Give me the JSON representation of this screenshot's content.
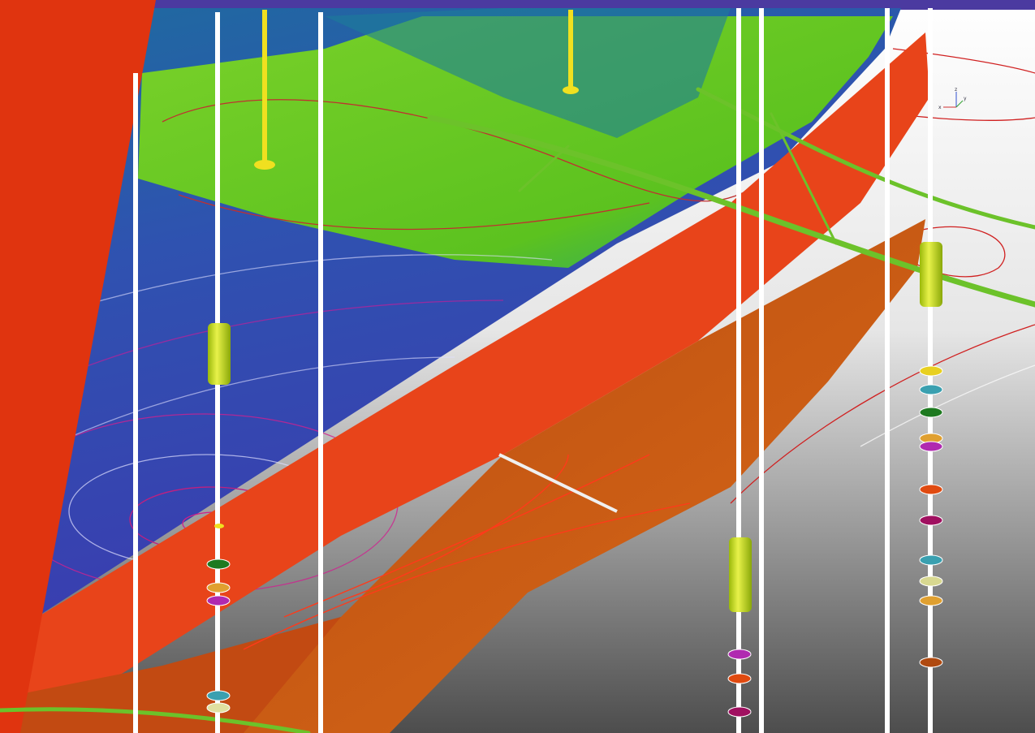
{
  "axis_triad": {
    "x": "x",
    "y": "y",
    "z": "z"
  }
}
